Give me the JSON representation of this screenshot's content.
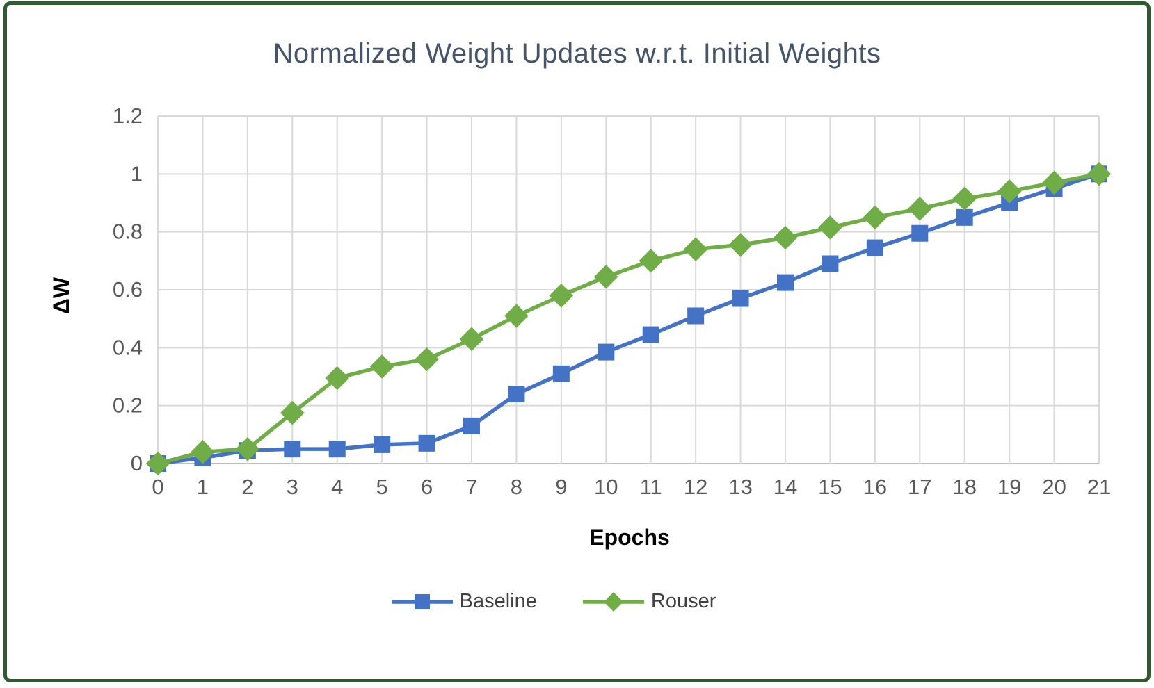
{
  "window": {
    "border_color": "#2e5b2f",
    "background": "#ffffff"
  },
  "chart_data": {
    "type": "line",
    "title": "Normalized Weight Updates w.r.t. Initial Weights",
    "xlabel": "Epochs",
    "ylabel": "ΔW",
    "x": [
      0,
      1,
      2,
      3,
      4,
      5,
      6,
      7,
      8,
      9,
      10,
      11,
      12,
      13,
      14,
      15,
      16,
      17,
      18,
      19,
      20,
      21
    ],
    "series": [
      {
        "name": "Baseline",
        "color": "#4472c4",
        "marker": "square",
        "values": [
          0,
          0.02,
          0.045,
          0.05,
          0.05,
          0.065,
          0.07,
          0.13,
          0.24,
          0.31,
          0.385,
          0.445,
          0.51,
          0.57,
          0.625,
          0.69,
          0.745,
          0.795,
          0.85,
          0.9,
          0.95,
          1.0
        ]
      },
      {
        "name": "Rouser",
        "color": "#70ad47",
        "marker": "diamond",
        "values": [
          0,
          0.04,
          0.05,
          0.175,
          0.295,
          0.335,
          0.36,
          0.43,
          0.51,
          0.58,
          0.645,
          0.7,
          0.74,
          0.755,
          0.78,
          0.815,
          0.85,
          0.88,
          0.915,
          0.94,
          0.97,
          1.0
        ]
      }
    ],
    "ylim": [
      0,
      1.2
    ],
    "yticks": [
      0,
      0.2,
      0.4,
      0.6,
      0.8,
      1,
      1.2
    ],
    "ytick_labels": [
      "0",
      "0.2",
      "0.4",
      "0.6",
      "0.8",
      "1",
      "1.2"
    ],
    "xtick_labels": [
      "0",
      "1",
      "2",
      "3",
      "4",
      "5",
      "6",
      "7",
      "8",
      "9",
      "10",
      "11",
      "12",
      "13",
      "14",
      "15",
      "16",
      "17",
      "18",
      "19",
      "20",
      "21"
    ],
    "grid": true,
    "legend_position": "bottom",
    "gridline_color": "#d9d9d9",
    "axis_line_color": "#bfbfbf",
    "tick_label_color": "#595959",
    "title_color": "#44546a"
  }
}
